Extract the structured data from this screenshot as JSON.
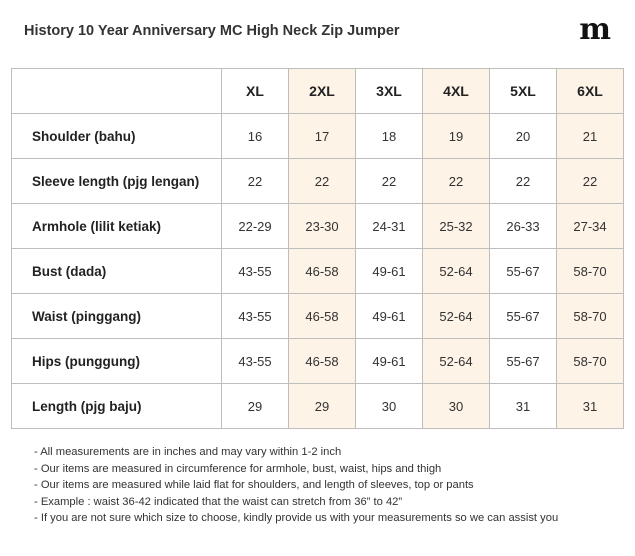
{
  "title": "History 10 Year Anniversary MC High Neck Zip Jumper",
  "logo": "m",
  "sizes": [
    "XL",
    "2XL",
    "3XL",
    "4XL",
    "5XL",
    "6XL"
  ],
  "rows": [
    {
      "label": "Shoulder (bahu)",
      "values": [
        "16",
        "17",
        "18",
        "19",
        "20",
        "21"
      ]
    },
    {
      "label": "Sleeve length (pjg lengan)",
      "values": [
        "22",
        "22",
        "22",
        "22",
        "22",
        "22"
      ]
    },
    {
      "label": "Armhole (lilit ketiak)",
      "values": [
        "22-29",
        "23-30",
        "24-31",
        "25-32",
        "26-33",
        "27-34"
      ]
    },
    {
      "label": "Bust (dada)",
      "values": [
        "43-55",
        "46-58",
        "49-61",
        "52-64",
        "55-67",
        "58-70"
      ]
    },
    {
      "label": "Waist (pinggang)",
      "values": [
        "43-55",
        "46-58",
        "49-61",
        "52-64",
        "55-67",
        "58-70"
      ]
    },
    {
      "label": "Hips (punggung)",
      "values": [
        "43-55",
        "46-58",
        "49-61",
        "52-64",
        "55-67",
        "58-70"
      ]
    },
    {
      "label": "Length (pjg baju)",
      "values": [
        "29",
        "29",
        "30",
        "30",
        "31",
        "31"
      ]
    }
  ],
  "notes": [
    "- All measurements are in inches and may vary within 1-2 inch",
    "- Our items are measured in circumference for armhole, bust, waist, hips and thigh",
    "- Our items are measured while laid flat for shoulders, and length of sleeves, top or pants",
    "- Example : waist 36-42 indicated that the waist can stretch from 36” to 42”",
    "- If you are not sure which size to choose, kindly provide us with your measurements so we can assist you"
  ],
  "colors": {
    "tint_column": "#fdf3e7",
    "border": "#bdbdbd"
  }
}
